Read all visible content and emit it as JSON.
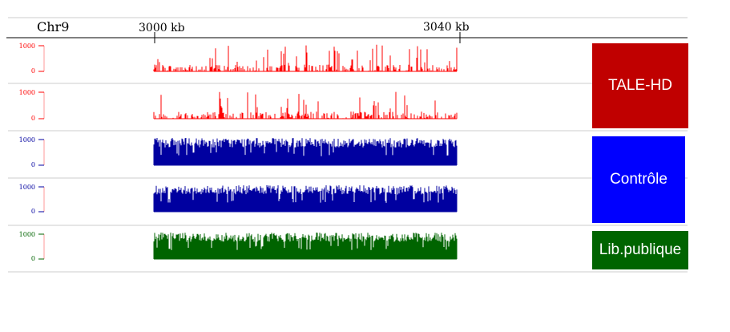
{
  "chromosome": "Chr9",
  "ruler": {
    "ticks": [
      "3000 kb",
      "3040 kb"
    ]
  },
  "group_labels": {
    "tale_hd": "TALE-HD",
    "controle": "Contrôle",
    "lib_publique": "Lib.publique"
  },
  "colors": {
    "tale_hd": "#ff0000",
    "controle": "#0000a0",
    "lib_publique": "#006400",
    "box_tale": "#c00000",
    "box_ctrl": "#0000ff",
    "box_lib": "#006400"
  },
  "chart_data": {
    "type": "area",
    "title": "",
    "x_range_kb": [
      3000,
      3040
    ],
    "tracks": [
      {
        "group": "TALE-HD",
        "color": "#ff0000",
        "ymax_label": "1000",
        "ymin_label": "0",
        "style": "sparse",
        "segments": [
          [
            0,
            5
          ],
          [
            7,
            8.5
          ],
          [
            10,
            10.8
          ],
          [
            12.5,
            16
          ],
          [
            16.8,
            17.3
          ],
          [
            18.3,
            23
          ],
          [
            24,
            29.5
          ],
          [
            30.3,
            34
          ],
          [
            35,
            40
          ]
        ]
      },
      {
        "group": "TALE-HD",
        "color": "#ff0000",
        "ymax_label": "1000",
        "ymin_label": "0",
        "style": "sparse",
        "segments": [
          [
            0,
            5
          ],
          [
            7,
            8.5
          ],
          [
            10,
            11.3
          ],
          [
            12.3,
            14
          ],
          [
            14.7,
            15.5
          ],
          [
            16.5,
            17.2
          ],
          [
            18,
            18.8
          ],
          [
            19.6,
            20.6
          ],
          [
            21.6,
            22.6
          ],
          [
            23.5,
            40
          ]
        ]
      },
      {
        "group": "Contrôle",
        "color": "#0000a0",
        "ymax_label": "1000",
        "ymin_label": "0",
        "style": "dense",
        "segments": [
          [
            0,
            5
          ],
          [
            6,
            8
          ],
          [
            10,
            14
          ],
          [
            15.5,
            23
          ],
          [
            24,
            40
          ]
        ]
      },
      {
        "group": "Contrôle",
        "color": "#0000a0",
        "ymax_label": "1000",
        "ymin_label": "0",
        "style": "dense",
        "segments": [
          [
            0,
            5
          ],
          [
            6,
            8
          ],
          [
            10,
            23
          ],
          [
            24,
            40
          ]
        ]
      },
      {
        "group": "Lib.publique",
        "color": "#006400",
        "ymax_label": "1000",
        "ymin_label": "0",
        "style": "dense",
        "segments": [
          [
            0,
            8.8
          ],
          [
            9.3,
            18.5
          ],
          [
            19.2,
            32
          ],
          [
            32.8,
            40
          ]
        ]
      }
    ]
  }
}
